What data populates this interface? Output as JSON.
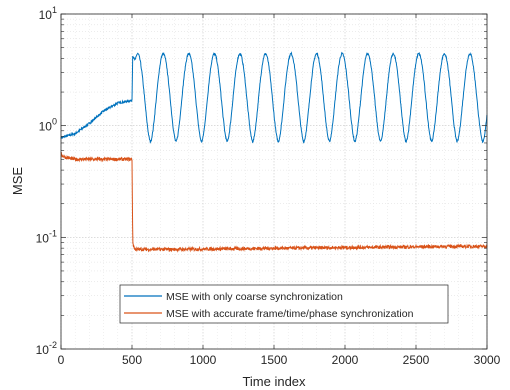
{
  "chart_data": {
    "type": "line",
    "title": "",
    "xlabel": "Time index",
    "ylabel": "MSE",
    "xlim": [
      0,
      3000
    ],
    "ylim": [
      0.01,
      10
    ],
    "yscale": "log",
    "grid": true,
    "minor_grid": true,
    "legend_position": "lower-right",
    "x_ticks": [
      "0",
      "500",
      "1000",
      "1500",
      "2000",
      "2500",
      "3000"
    ],
    "y_ticks": [
      {
        "base": "10",
        "exp": "-2"
      },
      {
        "base": "10",
        "exp": "-1"
      },
      {
        "base": "10",
        "exp": "0"
      },
      {
        "base": "10",
        "exp": "1"
      }
    ],
    "series": [
      {
        "name": "MSE with only coarse synchronization",
        "color": "#0072BD",
        "segments": [
          {
            "x": [
              0,
              100,
              200,
              300,
              400,
              500
            ],
            "y": [
              0.78,
              0.85,
              1.05,
              1.35,
              1.6,
              1.68
            ]
          },
          {
            "x": [
              505,
              540,
              720,
              900,
              1080,
              1260,
              1440,
              1620,
              1800,
              1980,
              2160,
              2340,
              2520,
              2700,
              2880,
              3000
            ],
            "y": [
              4.2,
              3.5,
              0.72,
              0.72,
              0.72,
              0.72,
              0.72,
              0.72,
              0.72,
              0.72,
              0.72,
              0.72,
              0.72,
              0.72,
              0.72,
              4.2
            ],
            "oscillation": {
              "period": 180,
              "min": 0.72,
              "max": 4.4,
              "peaks_at": [
                720,
                900,
                1080,
                1260,
                1440,
                1620,
                1800,
                1980,
                2160,
                2340,
                2520,
                2700,
                2880
              ]
            }
          }
        ]
      },
      {
        "name": "MSE with accurate frame/time/phase synchronization",
        "color": "#D95319",
        "segments": [
          {
            "x": [
              0,
              10,
              30,
              60,
              100,
              200,
              300,
              400,
              500
            ],
            "y": [
              0.56,
              0.54,
              0.52,
              0.51,
              0.5,
              0.5,
              0.5,
              0.5,
              0.5
            ]
          },
          {
            "x": [
              500,
              505,
              520,
              800,
              1200,
              1600,
              2000,
              2400,
              2800,
              3000
            ],
            "y": [
              0.5,
              0.09,
              0.078,
              0.078,
              0.079,
              0.08,
              0.081,
              0.082,
              0.083,
              0.083
            ]
          }
        ]
      }
    ]
  }
}
